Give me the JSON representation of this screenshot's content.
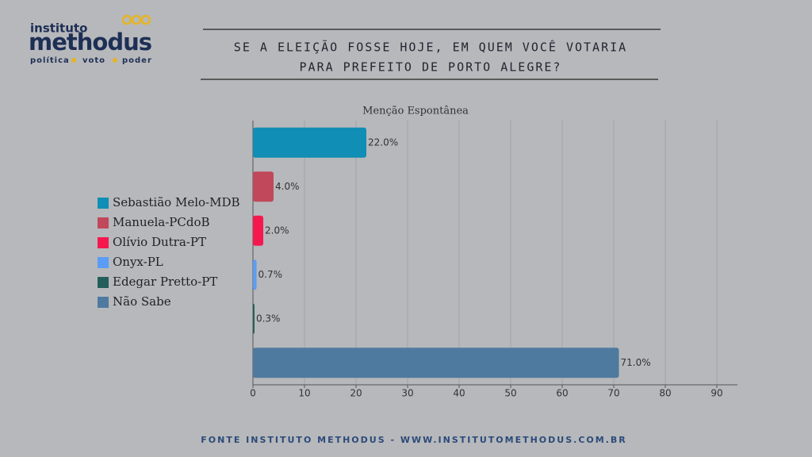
{
  "logo": {
    "top": "instituto",
    "name": "methodus",
    "words": [
      "política",
      "voto",
      "poder"
    ]
  },
  "chart_data": {
    "type": "hbar",
    "title": [
      "SE A ELEIÇÃO FOSSE HOJE, EM QUEM VOCÊ VOTARIA",
      "PARA PREFEITO DE PORTO ALEGRE?"
    ],
    "subtitle": "Menção Espontânea",
    "categories": [
      "Sebastião Melo-MDB",
      "Manuela-PCdoB",
      "Olívio Dutra-PT",
      "Onyx-PL",
      "Edegar Pretto-PT",
      "Não Sabe"
    ],
    "values": [
      22.0,
      4.0,
      2.0,
      0.7,
      0.3,
      71.0
    ],
    "value_labels": [
      "22.0%",
      "4.0%",
      "2.0%",
      "0.7%",
      "0.3%",
      "71.0%"
    ],
    "colors": [
      "#118eb5",
      "#c0485a",
      "#f5184e",
      "#5b9cf5",
      "#235e5a",
      "#4f7aa0"
    ],
    "xlim": [
      0,
      94
    ],
    "xticks": [
      0,
      10,
      20,
      30,
      40,
      50,
      60,
      70,
      80,
      90
    ],
    "grid": true,
    "legend": "left"
  },
  "footer": "FONTE INSTITUTO METHODUS - WWW.INSTITUTOMETHODUS.COM.BR"
}
